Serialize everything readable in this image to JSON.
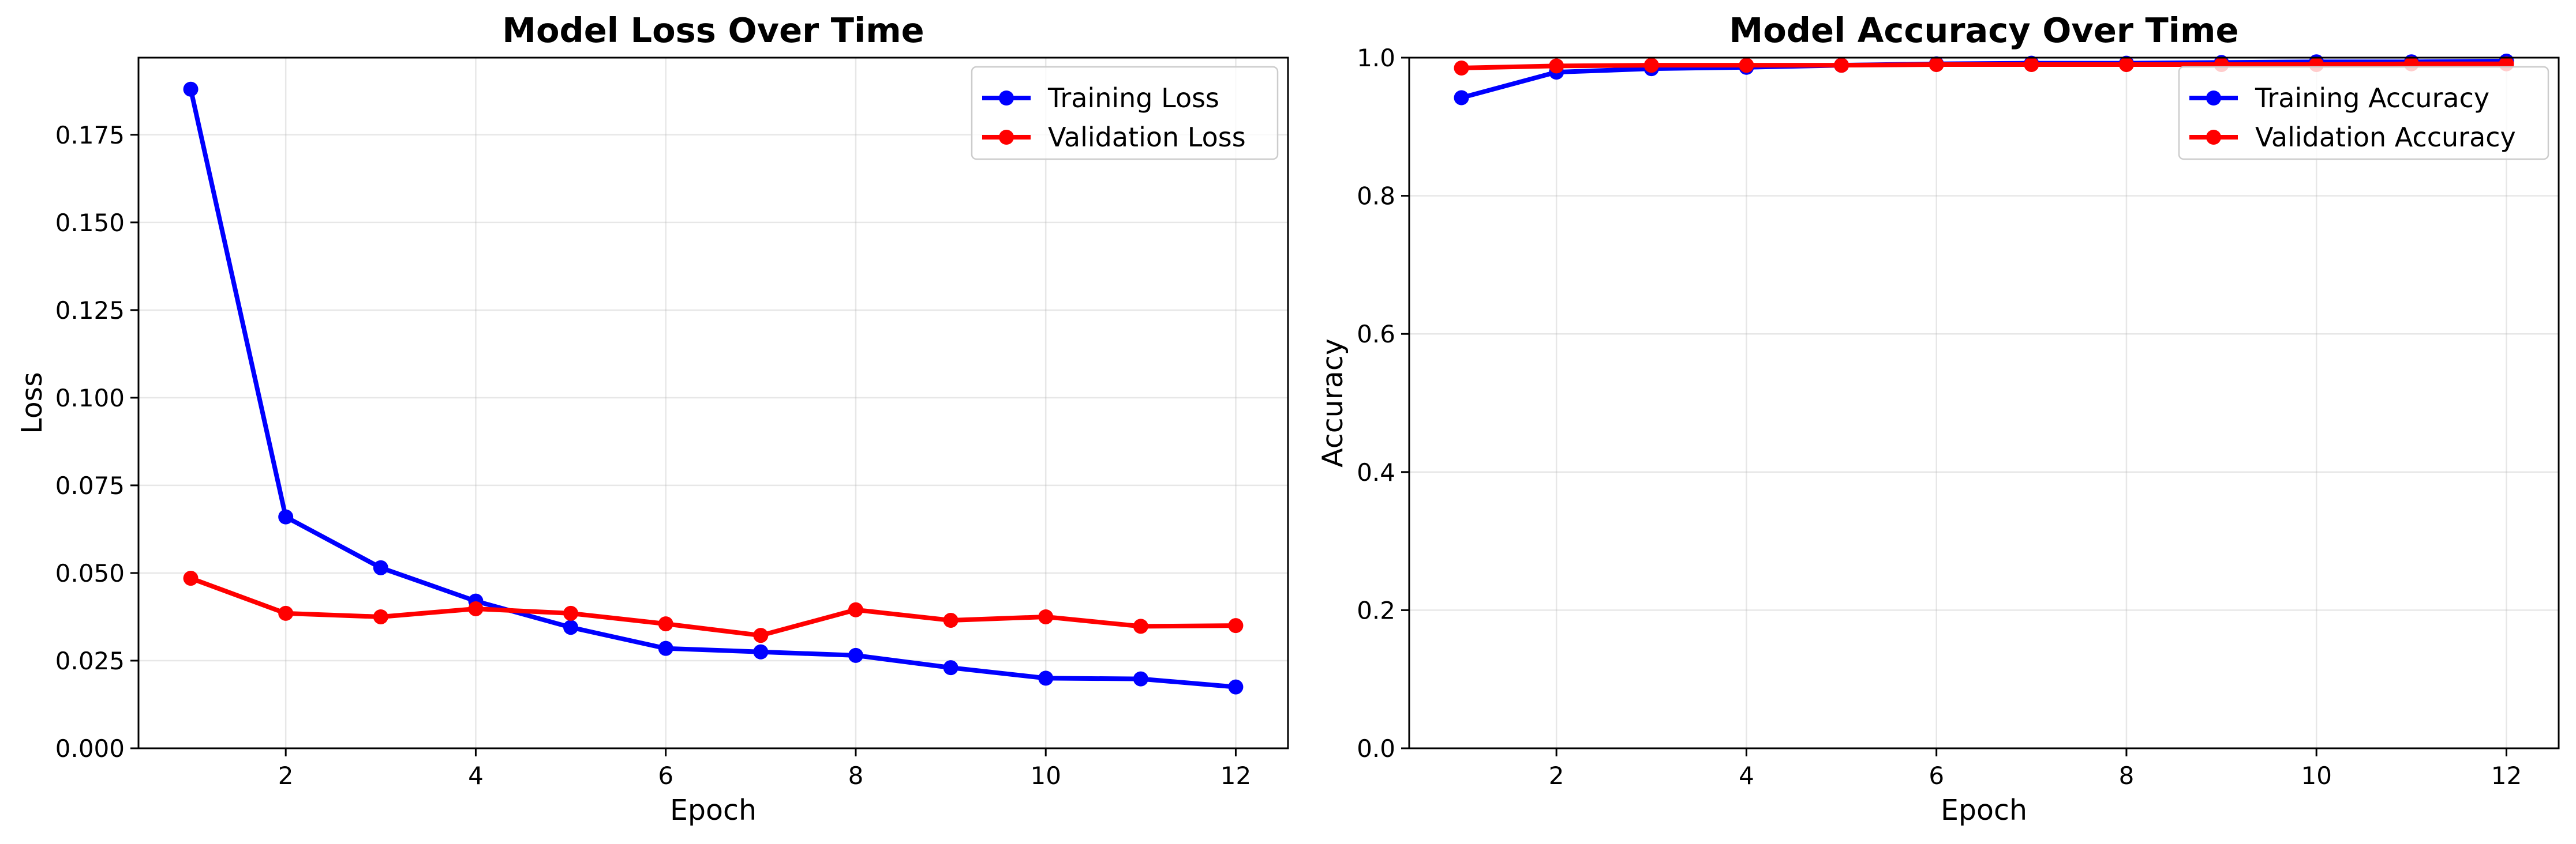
{
  "chart_data": [
    {
      "type": "line",
      "title": "Model Loss Over Time",
      "xlabel": "Epoch",
      "ylabel": "Loss",
      "x": [
        1,
        2,
        3,
        4,
        5,
        6,
        7,
        8,
        9,
        10,
        11,
        12
      ],
      "xlim": [
        0.45,
        12.55
      ],
      "ylim": [
        0,
        0.197
      ],
      "xticks": [
        2,
        4,
        6,
        8,
        10,
        12
      ],
      "xtick_labels": [
        "2",
        "4",
        "6",
        "8",
        "10",
        "12"
      ],
      "yticks": [
        0,
        0.025,
        0.05,
        0.075,
        0.1,
        0.125,
        0.15,
        0.175
      ],
      "ytick_labels": [
        "0.000",
        "0.025",
        "0.050",
        "0.075",
        "0.100",
        "0.125",
        "0.150",
        "0.175"
      ],
      "grid": true,
      "legend_position": "top-right",
      "series": [
        {
          "name": "Training Loss",
          "color": "#0000ff",
          "values": [
            0.188,
            0.066,
            0.0515,
            0.042,
            0.0345,
            0.0285,
            0.0275,
            0.0265,
            0.023,
            0.02,
            0.0198,
            0.0175
          ]
        },
        {
          "name": "Validation Loss",
          "color": "#ff0000",
          "values": [
            0.0485,
            0.0385,
            0.0375,
            0.0398,
            0.0385,
            0.0355,
            0.0322,
            0.0395,
            0.0365,
            0.0375,
            0.0348,
            0.035
          ]
        }
      ]
    },
    {
      "type": "line",
      "title": "Model Accuracy Over Time",
      "xlabel": "Epoch",
      "ylabel": "Accuracy",
      "x": [
        1,
        2,
        3,
        4,
        5,
        6,
        7,
        8,
        9,
        10,
        11,
        12
      ],
      "xlim": [
        0.45,
        12.55
      ],
      "ylim": [
        0,
        1.0
      ],
      "xticks": [
        2,
        4,
        6,
        8,
        10,
        12
      ],
      "xtick_labels": [
        "2",
        "4",
        "6",
        "8",
        "10",
        "12"
      ],
      "yticks": [
        0,
        0.2,
        0.4,
        0.6,
        0.8,
        1.0
      ],
      "ytick_labels": [
        "0.0",
        "0.2",
        "0.4",
        "0.6",
        "0.8",
        "1.0"
      ],
      "grid": true,
      "legend_position": "top-right",
      "series": [
        {
          "name": "Training Accuracy",
          "color": "#0000ff",
          "values": [
            0.942,
            0.979,
            0.984,
            0.986,
            0.989,
            0.991,
            0.992,
            0.992,
            0.993,
            0.994,
            0.994,
            0.995
          ]
        },
        {
          "name": "Validation Accuracy",
          "color": "#ff0000",
          "values": [
            0.985,
            0.988,
            0.989,
            0.989,
            0.989,
            0.99,
            0.99,
            0.99,
            0.99,
            0.99,
            0.991,
            0.991
          ]
        }
      ]
    }
  ]
}
